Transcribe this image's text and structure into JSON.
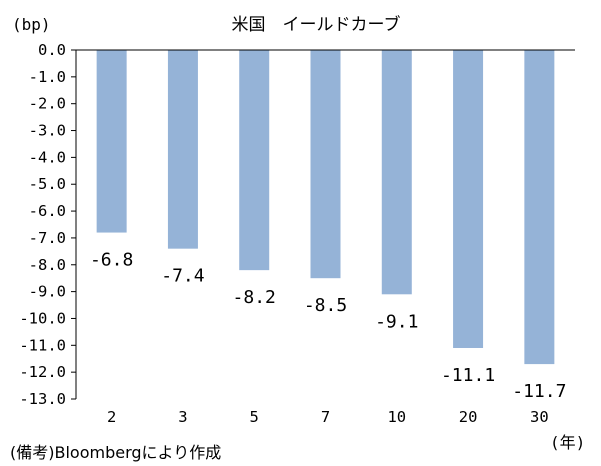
{
  "chart_data": {
    "type": "bar",
    "title": "米国　イールドカーブ",
    "ylabel": "(bp)",
    "xlabel": "(年)",
    "categories": [
      "2",
      "3",
      "5",
      "7",
      "10",
      "20",
      "30"
    ],
    "values": [
      -6.8,
      -7.4,
      -8.2,
      -8.5,
      -9.1,
      -11.1,
      -11.7
    ],
    "data_labels": [
      "-6.8",
      "-7.4",
      "-8.2",
      "-8.5",
      "-9.1",
      "-11.1",
      "-11.7"
    ],
    "ylim": [
      -13.0,
      0.0
    ],
    "yticks": [
      "0.0",
      "-1.0",
      "-2.0",
      "-3.0",
      "-4.0",
      "-5.0",
      "-6.0",
      "-7.0",
      "-8.0",
      "-9.0",
      "-10.0",
      "-11.0",
      "-12.0",
      "-13.0"
    ],
    "grid": false,
    "legend": "none",
    "bar_color": "#95b3d7",
    "source_note": "(備考)Bloombergにより作成"
  }
}
